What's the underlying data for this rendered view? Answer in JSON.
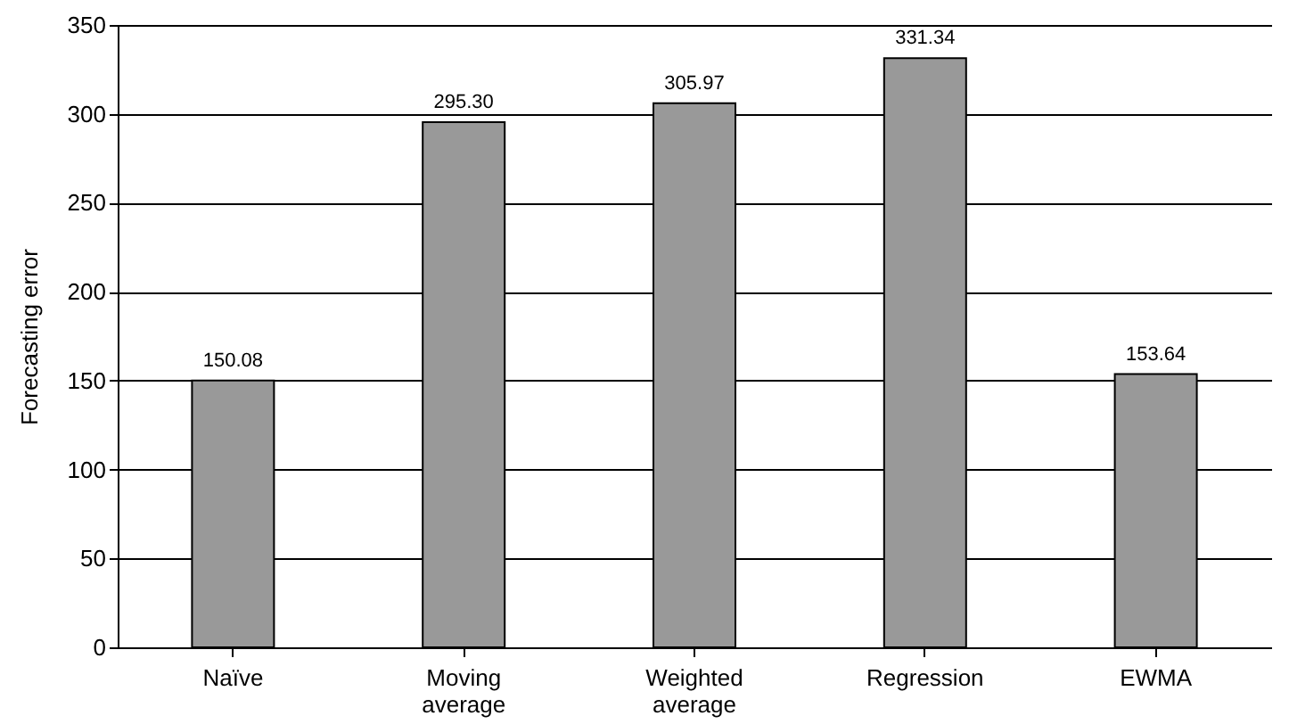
{
  "chart_data": {
    "type": "bar",
    "ylabel": "Forecasting error",
    "categories": [
      "Naïve",
      "Moving average",
      "Weighted average",
      "Regression",
      "EWMA"
    ],
    "values": [
      150.08,
      295.3,
      305.97,
      331.34,
      153.64
    ],
    "value_labels": [
      "150.08",
      "295.30",
      "305.97",
      "331.34",
      "153.64"
    ],
    "color": "#999999",
    "ylim": [
      0,
      350
    ],
    "yticks": [
      0,
      50,
      100,
      150,
      200,
      250,
      300,
      350
    ],
    "grid": "y"
  }
}
